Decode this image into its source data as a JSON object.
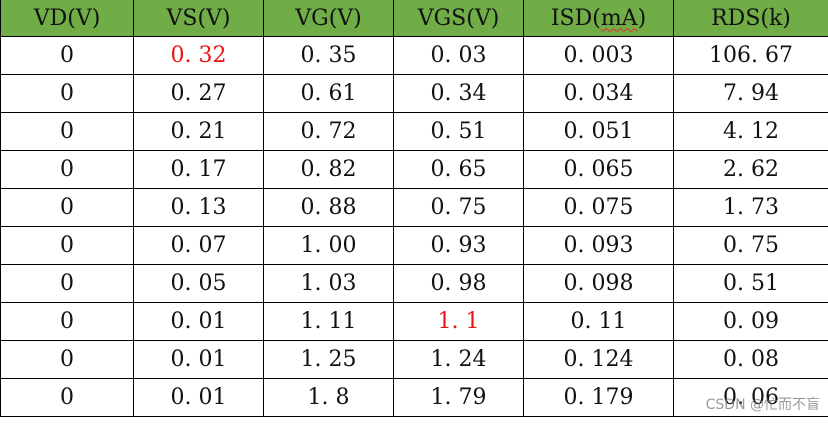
{
  "table": {
    "headers": [
      "VD(V)",
      "VS(V)",
      "VG(V)",
      "VGS(V)",
      "ISD(mA)",
      "RDS(k)"
    ],
    "header_color": "#70ad47",
    "highlight_color": "#ee1111",
    "rows": [
      [
        "0",
        "0.32",
        "0.35",
        "0.03",
        "0.003",
        "106.67"
      ],
      [
        "0",
        "0.27",
        "0.61",
        "0.34",
        "0.034",
        "7.94"
      ],
      [
        "0",
        "0.21",
        "0.72",
        "0.51",
        "0.051",
        "4.12"
      ],
      [
        "0",
        "0.17",
        "0.82",
        "0.65",
        "0.065",
        "2.62"
      ],
      [
        "0",
        "0.13",
        "0.88",
        "0.75",
        "0.075",
        "1.73"
      ],
      [
        "0",
        "0.07",
        "1.00",
        "0.93",
        "0.093",
        "0.75"
      ],
      [
        "0",
        "0.05",
        "1.03",
        "0.98",
        "0.098",
        "0.51"
      ],
      [
        "0",
        "0.01",
        "1.11",
        "1.1",
        "0.11",
        "0.09"
      ],
      [
        "0",
        "0.01",
        "1.25",
        "1.24",
        "0.124",
        "0.08"
      ],
      [
        "0",
        "0.01",
        "1.8",
        "1.79",
        "0.179",
        "0.06"
      ]
    ],
    "highlighted_cells": [
      [
        0,
        1
      ],
      [
        7,
        3
      ]
    ]
  },
  "watermark": "CSDN @忙而不盲"
}
